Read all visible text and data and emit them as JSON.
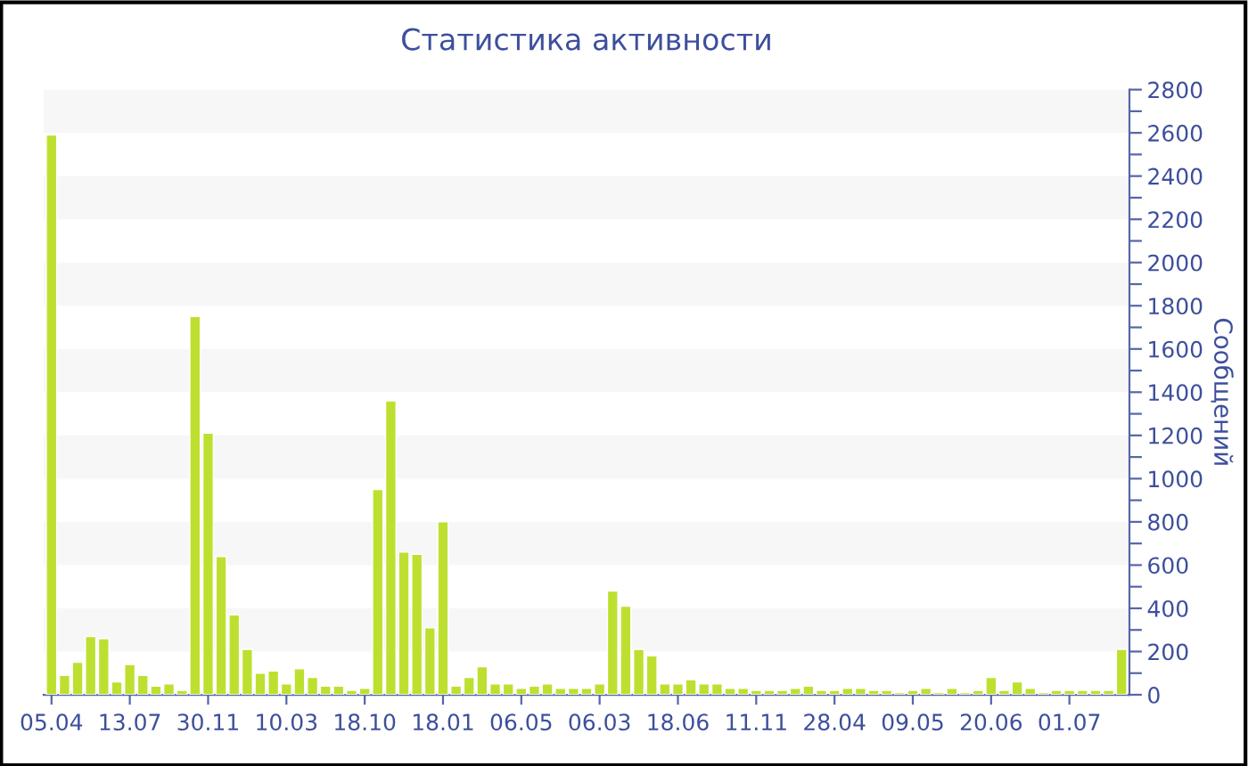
{
  "chart_data": {
    "type": "bar",
    "title": "Статистика активности",
    "ylabel": "Сообщений",
    "categories": [
      "05.04",
      null,
      null,
      null,
      null,
      null,
      "13.07",
      null,
      null,
      null,
      null,
      null,
      "30.11",
      null,
      null,
      null,
      null,
      null,
      "10.03",
      null,
      null,
      null,
      null,
      null,
      "18.10",
      null,
      null,
      null,
      null,
      null,
      "18.01",
      null,
      null,
      null,
      null,
      null,
      "06.05",
      null,
      null,
      null,
      null,
      null,
      "06.03",
      null,
      null,
      null,
      null,
      null,
      "18.06",
      null,
      null,
      null,
      null,
      null,
      "11.11",
      null,
      null,
      null,
      null,
      null,
      "28.04",
      null,
      null,
      null,
      null,
      null,
      "09.05",
      null,
      null,
      null,
      null,
      null,
      "20.06",
      null,
      null,
      null,
      null,
      null,
      "01.07",
      null,
      null,
      null,
      null
    ],
    "values": [
      2590,
      90,
      150,
      270,
      260,
      60,
      140,
      90,
      40,
      50,
      20,
      1750,
      1210,
      640,
      370,
      210,
      100,
      110,
      50,
      120,
      80,
      40,
      40,
      20,
      30,
      950,
      1360,
      660,
      650,
      310,
      800,
      40,
      80,
      130,
      50,
      50,
      30,
      40,
      50,
      30,
      30,
      30,
      50,
      480,
      410,
      210,
      180,
      50,
      50,
      70,
      50,
      50,
      30,
      30,
      20,
      20,
      20,
      30,
      40,
      20,
      20,
      30,
      30,
      20,
      20,
      10,
      20,
      30,
      10,
      30,
      10,
      20,
      80,
      20,
      60,
      30,
      10,
      20,
      20,
      20,
      20,
      20,
      210
    ],
    "color": "#bde030",
    "ylim": [
      0,
      2800
    ],
    "yticks": [
      0,
      {
        "value": 100,
        "label": null
      },
      200,
      {
        "value": 300,
        "label": null
      },
      400,
      {
        "value": 500,
        "label": null
      },
      600,
      {
        "value": 700,
        "label": null
      },
      800,
      {
        "value": 900,
        "label": null
      },
      1000,
      {
        "value": 1100,
        "label": null
      },
      1200,
      {
        "value": 1300,
        "label": null
      },
      1400,
      {
        "value": 1500,
        "label": null
      },
      1600,
      {
        "value": 1700,
        "label": null
      },
      1800,
      {
        "value": 1900,
        "label": null
      },
      2000,
      {
        "value": 2100,
        "label": null
      },
      2200,
      {
        "value": 2300,
        "label": null
      },
      2400,
      {
        "value": 2500,
        "label": null
      },
      2600,
      {
        "value": 2700,
        "label": null
      },
      2800
    ],
    "bands": [
      {
        "axis": "y",
        "from": 200,
        "to": 400,
        "color": "#f7f7f7"
      },
      {
        "axis": "y",
        "from": 600,
        "to": 800,
        "color": "#f7f7f7"
      },
      {
        "axis": "y",
        "from": 1000,
        "to": 1200,
        "color": "#f7f7f7"
      },
      {
        "axis": "y",
        "from": 1400,
        "to": 1600,
        "color": "#f7f7f7"
      },
      {
        "axis": "y",
        "from": 1800,
        "to": 2000,
        "color": "#f7f7f7"
      },
      {
        "axis": "y",
        "from": 2200,
        "to": 2400,
        "color": "#f7f7f7"
      },
      {
        "axis": "y",
        "from": 2600,
        "to": 2800,
        "color": "#f7f7f7"
      }
    ]
  }
}
